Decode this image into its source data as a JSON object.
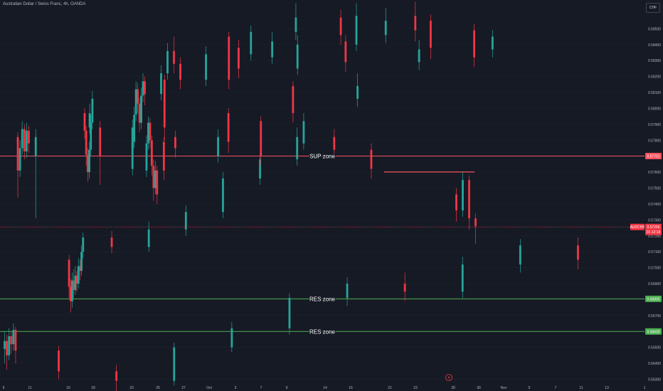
{
  "header": {
    "symbol_title": "Australian Dollar / Swiss Franc, 4h, OANDA",
    "currency": "CHF"
  },
  "colors": {
    "background": "#161a25",
    "up": "#26a69a",
    "down": "#f23645",
    "sup_line": "#f7525f",
    "res_line": "#4caf50",
    "grid": "#1e222d"
  },
  "chart_data": {
    "type": "candlestick",
    "y_axis": {
      "range": [
        0.5628,
        0.5868
      ],
      "ticks": [
        "0.58500",
        "0.58400",
        "0.58300",
        "0.58200",
        "0.58100",
        "0.58000",
        "0.57900",
        "0.57800",
        "0.57700",
        "0.57600",
        "0.57500",
        "0.57400",
        "0.57300",
        "0.57200",
        "0.57100",
        "0.57000",
        "0.56900",
        "0.56800",
        "0.56700",
        "0.56600",
        "0.56500",
        "0.56400",
        "0.56300"
      ]
    },
    "x_axis": {
      "ticks": [
        "9",
        "11",
        "16",
        "18",
        "23",
        "25",
        "27",
        "Oct",
        "3",
        "7",
        "9",
        "14",
        "16",
        "21",
        "23",
        "28",
        "30",
        "Nov",
        "5",
        "7",
        "11",
        "13",
        "1"
      ]
    },
    "current_price": {
      "symbol": "AUDCHF",
      "value": "0.57256",
      "countdown": "01:12:18"
    },
    "levels": [
      {
        "name": "SUP zone",
        "price": 0.57701,
        "tag": "0.57701",
        "kind": "sup"
      },
      {
        "name": "RES zone",
        "price": 0.56805,
        "tag": "0.56805",
        "kind": "res"
      },
      {
        "name": "RES zone",
        "price": 0.566,
        "tag": "0.56600",
        "kind": "res"
      },
      {
        "name": "",
        "price": 0.57601,
        "tag": "",
        "kind": "short",
        "from": "21",
        "to": "30"
      }
    ],
    "marker_icon": "lightning-icon",
    "candles": [
      {
        "x": "9",
        "o": 0.5649,
        "c": 0.5654,
        "h": 0.566,
        "l": 0.564
      },
      {
        "x": "9",
        "o": 0.5654,
        "c": 0.5645,
        "h": 0.5658,
        "l": 0.5636
      },
      {
        "x": "9",
        "o": 0.5645,
        "c": 0.5657,
        "h": 0.5662,
        "l": 0.5642
      },
      {
        "x": "9",
        "o": 0.5657,
        "c": 0.5652,
        "h": 0.566,
        "l": 0.5646
      },
      {
        "x": "9",
        "o": 0.5652,
        "c": 0.5661,
        "h": 0.5665,
        "l": 0.5648
      },
      {
        "x": "9",
        "o": 0.5661,
        "c": 0.5648,
        "h": 0.5663,
        "l": 0.564
      },
      {
        "x": "11",
        "o": 0.5648,
        "c": 0.5635,
        "h": 0.5651,
        "l": 0.563
      },
      {
        "x": "11",
        "o": 0.5635,
        "c": 0.5629,
        "h": 0.5639,
        "l": 0.5622
      },
      {
        "x": "11",
        "o": 0.5629,
        "c": 0.565,
        "h": 0.5653,
        "l": 0.5626
      },
      {
        "x": "11",
        "o": 0.565,
        "c": 0.5662,
        "h": 0.5666,
        "l": 0.5647
      },
      {
        "x": "11",
        "o": 0.5662,
        "c": 0.5681,
        "h": 0.5684,
        "l": 0.5658
      },
      {
        "x": "11",
        "o": 0.5681,
        "c": 0.569,
        "h": 0.5694,
        "l": 0.5676
      },
      {
        "x": "11",
        "o": 0.569,
        "c": 0.5685,
        "h": 0.5697,
        "l": 0.5679
      },
      {
        "x": "11",
        "o": 0.5685,
        "c": 0.5702,
        "h": 0.5707,
        "l": 0.5681
      },
      {
        "x": "11",
        "o": 0.5702,
        "c": 0.5714,
        "h": 0.5718,
        "l": 0.5697
      },
      {
        "x": "11",
        "o": 0.5714,
        "c": 0.5705,
        "h": 0.5719,
        "l": 0.5699
      },
      {
        "x": "16",
        "o": 0.5705,
        "c": 0.5688,
        "h": 0.5708,
        "l": 0.5681
      },
      {
        "x": "16",
        "o": 0.5688,
        "c": 0.5679,
        "h": 0.5693,
        "l": 0.5672
      },
      {
        "x": "16",
        "o": 0.5679,
        "c": 0.5692,
        "h": 0.5697,
        "l": 0.5675
      },
      {
        "x": "16",
        "o": 0.5692,
        "c": 0.5686,
        "h": 0.5699,
        "l": 0.5681
      },
      {
        "x": "16",
        "o": 0.5686,
        "c": 0.5695,
        "h": 0.5701,
        "l": 0.5683
      },
      {
        "x": "16",
        "o": 0.5695,
        "c": 0.569,
        "h": 0.5698,
        "l": 0.5685
      },
      {
        "x": "16",
        "o": 0.569,
        "c": 0.5701,
        "h": 0.5706,
        "l": 0.5687
      },
      {
        "x": "16",
        "o": 0.5701,
        "c": 0.5698,
        "h": 0.5705,
        "l": 0.5692
      },
      {
        "x": "16",
        "o": 0.5698,
        "c": 0.571,
        "h": 0.5714,
        "l": 0.5695
      },
      {
        "x": "16",
        "o": 0.571,
        "c": 0.5719,
        "h": 0.5722,
        "l": 0.5706
      },
      {
        "x": "18",
        "o": 0.5719,
        "c": 0.5713,
        "h": 0.5723,
        "l": 0.5709
      },
      {
        "x": "18",
        "o": 0.5713,
        "c": 0.5724,
        "h": 0.5729,
        "l": 0.571
      },
      {
        "x": "18",
        "o": 0.5724,
        "c": 0.5735,
        "h": 0.5739,
        "l": 0.572
      },
      {
        "x": "18",
        "o": 0.5735,
        "c": 0.5756,
        "h": 0.576,
        "l": 0.5731
      },
      {
        "x": "18",
        "o": 0.5756,
        "c": 0.5768,
        "h": 0.5772,
        "l": 0.5752
      },
      {
        "x": "18",
        "o": 0.5768,
        "c": 0.5782,
        "h": 0.5788,
        "l": 0.5764
      },
      {
        "x": "18",
        "o": 0.5782,
        "c": 0.5774,
        "h": 0.5787,
        "l": 0.5768
      },
      {
        "x": "18",
        "o": 0.5774,
        "c": 0.5762,
        "h": 0.5778,
        "l": 0.5756
      },
      {
        "x": "23",
        "o": 0.5762,
        "c": 0.5779,
        "h": 0.5784,
        "l": 0.5758
      },
      {
        "x": "23",
        "o": 0.5779,
        "c": 0.5796,
        "h": 0.5801,
        "l": 0.5775
      },
      {
        "x": "23",
        "o": 0.5796,
        "c": 0.5812,
        "h": 0.5817,
        "l": 0.5792
      },
      {
        "x": "23",
        "o": 0.5812,
        "c": 0.5803,
        "h": 0.5816,
        "l": 0.5797
      },
      {
        "x": "23",
        "o": 0.5803,
        "c": 0.5791,
        "h": 0.5807,
        "l": 0.5785
      },
      {
        "x": "23",
        "o": 0.5791,
        "c": 0.5808,
        "h": 0.5813,
        "l": 0.5787
      },
      {
        "x": "23",
        "o": 0.5808,
        "c": 0.5817,
        "h": 0.5822,
        "l": 0.5804
      },
      {
        "x": "23",
        "o": 0.5817,
        "c": 0.5809,
        "h": 0.582,
        "l": 0.5802
      },
      {
        "x": "25",
        "o": 0.5809,
        "c": 0.5822,
        "h": 0.5827,
        "l": 0.5805
      },
      {
        "x": "25",
        "o": 0.5822,
        "c": 0.5836,
        "h": 0.5841,
        "l": 0.5818
      },
      {
        "x": "25",
        "o": 0.5836,
        "c": 0.5828,
        "h": 0.5845,
        "l": 0.5822
      },
      {
        "x": "25",
        "o": 0.5828,
        "c": 0.5818,
        "h": 0.5832,
        "l": 0.5812
      },
      {
        "x": "27",
        "o": 0.5818,
        "c": 0.5834,
        "h": 0.5839,
        "l": 0.5814
      },
      {
        "x": "27",
        "o": 0.5834,
        "c": 0.5848,
        "h": 0.5852,
        "l": 0.583
      },
      {
        "x": "27",
        "o": 0.5848,
        "c": 0.5857,
        "h": 0.5866,
        "l": 0.5843
      },
      {
        "x": "27",
        "o": 0.5857,
        "c": 0.5846,
        "h": 0.5862,
        "l": 0.584
      },
      {
        "x": "27",
        "o": 0.5846,
        "c": 0.5855,
        "h": 0.5863,
        "l": 0.5841
      },
      {
        "x": "27",
        "o": 0.5855,
        "c": 0.5838,
        "h": 0.5859,
        "l": 0.5831
      },
      {
        "x": "Oct",
        "o": 0.5838,
        "c": 0.5825,
        "h": 0.5843,
        "l": 0.5819
      },
      {
        "x": "Oct",
        "o": 0.5825,
        "c": 0.584,
        "h": 0.5846,
        "l": 0.5821
      },
      {
        "x": "Oct",
        "o": 0.584,
        "c": 0.5858,
        "h": 0.5866,
        "l": 0.5836
      },
      {
        "x": "Oct",
        "o": 0.5858,
        "c": 0.5849,
        "h": 0.5867,
        "l": 0.5842
      },
      {
        "x": "Oct",
        "o": 0.5849,
        "c": 0.5832,
        "h": 0.5853,
        "l": 0.5826
      },
      {
        "x": "3",
        "o": 0.5832,
        "c": 0.5842,
        "h": 0.5848,
        "l": 0.5828
      },
      {
        "x": "3",
        "o": 0.5842,
        "c": 0.5829,
        "h": 0.5846,
        "l": 0.5823
      },
      {
        "x": "3",
        "o": 0.5829,
        "c": 0.5837,
        "h": 0.5843,
        "l": 0.5824
      },
      {
        "x": "3",
        "o": 0.5837,
        "c": 0.5845,
        "h": 0.5849,
        "l": 0.5832
      },
      {
        "x": "7",
        "o": 0.5845,
        "c": 0.5818,
        "h": 0.5848,
        "l": 0.5812
      },
      {
        "x": "7",
        "o": 0.5818,
        "c": 0.5788,
        "h": 0.5821,
        "l": 0.578
      },
      {
        "x": "7",
        "o": 0.5788,
        "c": 0.577,
        "h": 0.5792,
        "l": 0.5752
      },
      {
        "x": "7",
        "o": 0.577,
        "c": 0.5782,
        "h": 0.5787,
        "l": 0.5731
      },
      {
        "x": "9",
        "o": 0.5782,
        "c": 0.5761,
        "h": 0.5785,
        "l": 0.5744
      },
      {
        "x": "9",
        "o": 0.5761,
        "c": 0.5775,
        "h": 0.578,
        "l": 0.5757
      },
      {
        "x": "9",
        "o": 0.5775,
        "c": 0.5787,
        "h": 0.5792,
        "l": 0.5771
      },
      {
        "x": "9",
        "o": 0.5787,
        "c": 0.5773,
        "h": 0.579,
        "l": 0.5768
      },
      {
        "x": "9",
        "o": 0.5773,
        "c": 0.5786,
        "h": 0.5791,
        "l": 0.5769
      },
      {
        "x": "9",
        "o": 0.5786,
        "c": 0.5778,
        "h": 0.5789,
        "l": 0.5772
      },
      {
        "x": "14",
        "o": 0.5778,
        "c": 0.5792,
        "h": 0.5797,
        "l": 0.5774
      },
      {
        "x": "14",
        "o": 0.5792,
        "c": 0.577,
        "h": 0.5795,
        "l": 0.5764
      },
      {
        "x": "14",
        "o": 0.577,
        "c": 0.5782,
        "h": 0.5787,
        "l": 0.5766
      },
      {
        "x": "14",
        "o": 0.5782,
        "c": 0.5775,
        "h": 0.5786,
        "l": 0.5769
      },
      {
        "x": "14",
        "o": 0.5775,
        "c": 0.5788,
        "h": 0.5793,
        "l": 0.5771
      },
      {
        "x": "14",
        "o": 0.5788,
        "c": 0.5797,
        "h": 0.5803,
        "l": 0.5784
      },
      {
        "x": "16",
        "o": 0.5797,
        "c": 0.5786,
        "h": 0.58,
        "l": 0.5781
      },
      {
        "x": "16",
        "o": 0.5786,
        "c": 0.5771,
        "h": 0.5789,
        "l": 0.5764
      },
      {
        "x": "16",
        "o": 0.5771,
        "c": 0.576,
        "h": 0.5775,
        "l": 0.5754
      },
      {
        "x": "16",
        "o": 0.576,
        "c": 0.5774,
        "h": 0.5779,
        "l": 0.5756
      },
      {
        "x": "16",
        "o": 0.5774,
        "c": 0.5791,
        "h": 0.5796,
        "l": 0.577
      },
      {
        "x": "16",
        "o": 0.5791,
        "c": 0.5806,
        "h": 0.5811,
        "l": 0.5787
      },
      {
        "x": "21",
        "o": 0.5806,
        "c": 0.5814,
        "h": 0.5822,
        "l": 0.5801
      },
      {
        "x": "21",
        "o": 0.5814,
        "c": 0.5797,
        "h": 0.5817,
        "l": 0.5791
      },
      {
        "x": "21",
        "o": 0.5797,
        "c": 0.5779,
        "h": 0.58,
        "l": 0.5772
      },
      {
        "x": "21",
        "o": 0.5779,
        "c": 0.5761,
        "h": 0.5782,
        "l": 0.5755
      },
      {
        "x": "23",
        "o": 0.5761,
        "c": 0.5778,
        "h": 0.5783,
        "l": 0.5757
      },
      {
        "x": "23",
        "o": 0.5778,
        "c": 0.5791,
        "h": 0.5795,
        "l": 0.5774
      },
      {
        "x": "23",
        "o": 0.5791,
        "c": 0.578,
        "h": 0.5794,
        "l": 0.5775
      },
      {
        "x": "23",
        "o": 0.578,
        "c": 0.5764,
        "h": 0.5783,
        "l": 0.5758
      },
      {
        "x": "23",
        "o": 0.5764,
        "c": 0.575,
        "h": 0.5768,
        "l": 0.5742
      },
      {
        "x": "23",
        "o": 0.575,
        "c": 0.5761,
        "h": 0.5767,
        "l": 0.5746
      },
      {
        "x": "23",
        "o": 0.5761,
        "c": 0.5746,
        "h": 0.5764,
        "l": 0.574
      },
      {
        "x": "28",
        "o": 0.5746,
        "c": 0.5736,
        "h": 0.575,
        "l": 0.5729
      },
      {
        "x": "28",
        "o": 0.5736,
        "c": 0.5755,
        "h": 0.576,
        "l": 0.5732
      },
      {
        "x": "28",
        "o": 0.5755,
        "c": 0.5731,
        "h": 0.5758,
        "l": 0.5724
      },
      {
        "x": "28",
        "o": 0.5731,
        "c": 0.5726,
        "h": 0.5734,
        "l": 0.5715
      }
    ]
  }
}
